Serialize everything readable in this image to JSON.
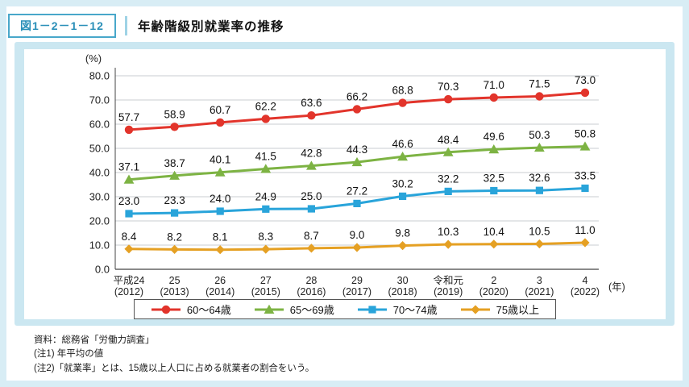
{
  "header": {
    "figure_label": "図1－2－1－12",
    "title": "年齢階級別就業率の推移"
  },
  "chart_data": {
    "type": "line",
    "unit_label": "(%)",
    "x_axis_suffix": "(年)",
    "ylim": [
      0,
      80
    ],
    "ytick_step": 10,
    "grid": true,
    "legend_position": "bottom",
    "categories_line1": [
      "平成24",
      "25",
      "26",
      "27",
      "28",
      "29",
      "30",
      "令和元",
      "2",
      "3",
      "4"
    ],
    "categories_line2": [
      "(2012)",
      "(2013)",
      "(2014)",
      "(2015)",
      "(2016)",
      "(2017)",
      "(2018)",
      "(2019)",
      "(2020)",
      "(2021)",
      "(2022)"
    ],
    "series": [
      {
        "name": "60～64歳",
        "color": "#e2342b",
        "marker": "circle",
        "values": [
          57.7,
          58.9,
          60.7,
          62.2,
          63.6,
          66.2,
          68.8,
          70.3,
          71.0,
          71.5,
          73.0
        ]
      },
      {
        "name": "65～69歳",
        "color": "#7db343",
        "marker": "triangle",
        "values": [
          37.1,
          38.7,
          40.1,
          41.5,
          42.8,
          44.3,
          46.6,
          48.4,
          49.6,
          50.3,
          50.8
        ]
      },
      {
        "name": "70～74歳",
        "color": "#29a4da",
        "marker": "square",
        "values": [
          23.0,
          23.3,
          24.0,
          24.9,
          25.0,
          27.2,
          30.2,
          32.2,
          32.5,
          32.6,
          33.5
        ]
      },
      {
        "name": "75歳以上",
        "color": "#e5a023",
        "marker": "diamond",
        "values": [
          8.4,
          8.2,
          8.1,
          8.3,
          8.7,
          9.0,
          9.8,
          10.3,
          10.4,
          10.5,
          11.0
        ]
      }
    ]
  },
  "colors": {
    "page_frame_blue": "#d8edf5",
    "figure_panel_blue": "#cbe7f1",
    "header_accent_blue": "#48a7ca"
  },
  "footer": {
    "source": "資料：総務省「労働力調査」",
    "note1": "(注1) 年平均の値",
    "note2": "(注2)「就業率」とは、15歳以上人口に占める就業者の割合をいう。"
  }
}
